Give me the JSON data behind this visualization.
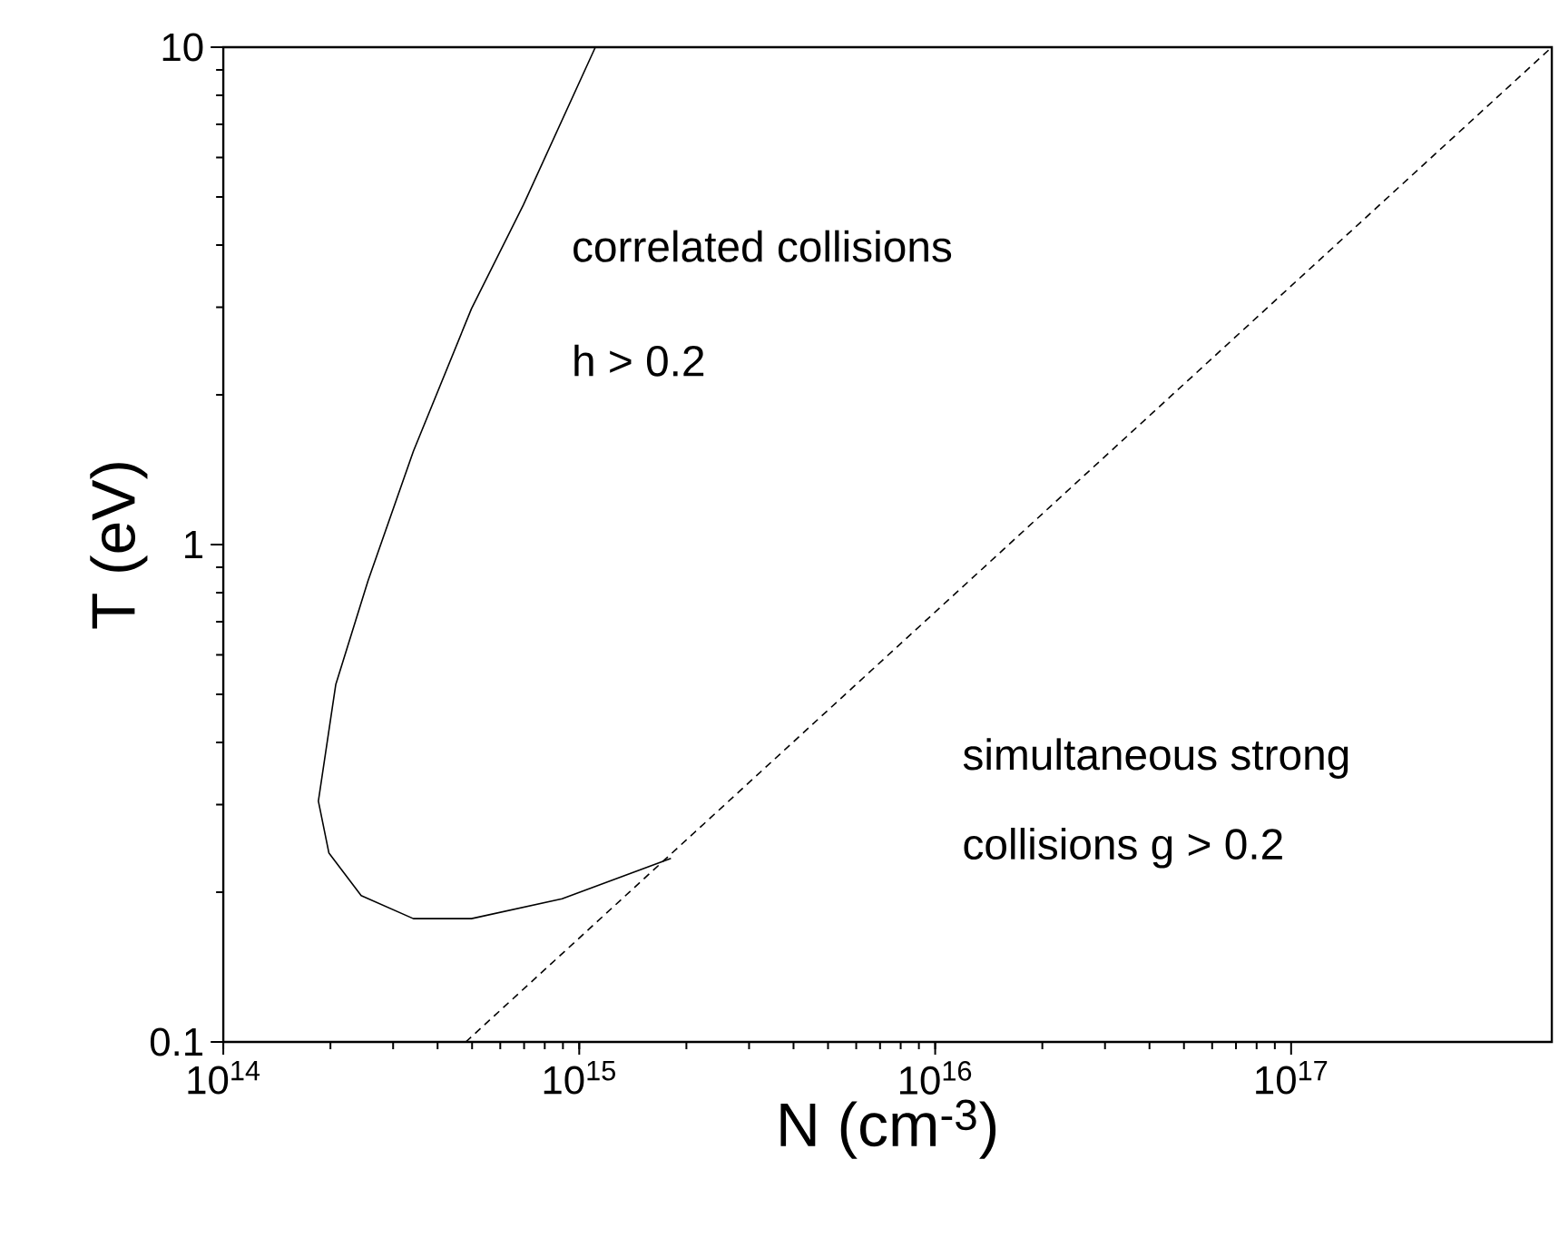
{
  "chart_data": {
    "type": "line",
    "xlabel": "N (cm$^{-3}$)",
    "ylabel": "T (eV)",
    "log": "xy",
    "marker": "none",
    "xlim": [
      100000000000000.0,
      5.4e+17
    ],
    "ylim": [
      0.1,
      10
    ],
    "xticks": [
      {
        "value": 100000000000000.0,
        "label": "10$^{14}$"
      },
      {
        "value": 1000000000000000.0,
        "label": "10$^{15}$"
      },
      {
        "value": 1e+16,
        "label": "10$^{16}$"
      },
      {
        "value": 1e+17,
        "label": "10$^{17}$"
      }
    ],
    "yticks": [
      0.1,
      1,
      10
    ],
    "series": [
      {
        "color": "#000000",
        "line_style": "solid",
        "x": [
          1110000000000000.0,
          697000000000000.0,
          498000000000000.0,
          342000000000000.0,
          255000000000000.0,
          207000000000000.0,
          185000000000000.0,
          198000000000000.0,
          244000000000000.0,
          342000000000000.0,
          498000000000000.0,
          895000000000000.0,
          1810000000000000.0
        ],
        "values": [
          10,
          4.82,
          2.98,
          1.54,
          0.845,
          0.523,
          0.305,
          0.24,
          0.197,
          0.177,
          0.177,
          0.194,
          0.234
        ]
      },
      {
        "color": "#000000",
        "line_style": "dashed",
        "x": [
          480000000000000.0,
          5.4e+17
        ],
        "values": [
          0.1,
          10
        ]
      }
    ],
    "annotations": [
      "correlated collisions",
      "h > 0.2",
      "simultaneous strong",
      "collisions g > 0.2"
    ]
  }
}
